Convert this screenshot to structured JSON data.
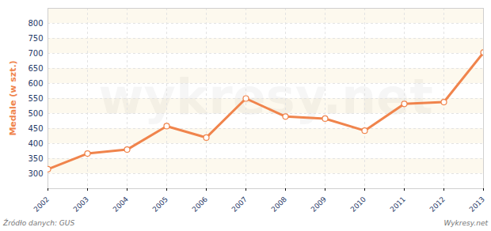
{
  "chart_data": {
    "type": "line",
    "y_label": "Medale (w szt.)",
    "source": "Źródło danych: GUS",
    "credit": "Wykresy.net",
    "watermark": "wykresy.net",
    "x": [
      2002,
      2003,
      2004,
      2005,
      2006,
      2007,
      2008,
      2009,
      2010,
      2011,
      2012,
      2013
    ],
    "values": [
      315,
      367,
      380,
      458,
      420,
      550,
      490,
      483,
      443,
      532,
      538,
      703
    ],
    "color": "#f0844c",
    "marker": "circle",
    "xlim": [
      2002,
      2013
    ],
    "xticks": [
      2002,
      2003,
      2004,
      2005,
      2006,
      2007,
      2008,
      2009,
      2010,
      2011,
      2012,
      2013
    ],
    "ylim": [
      250,
      850
    ],
    "yticks": [
      300,
      350,
      400,
      450,
      500,
      550,
      600,
      650,
      700,
      750,
      800
    ],
    "grid": true
  }
}
